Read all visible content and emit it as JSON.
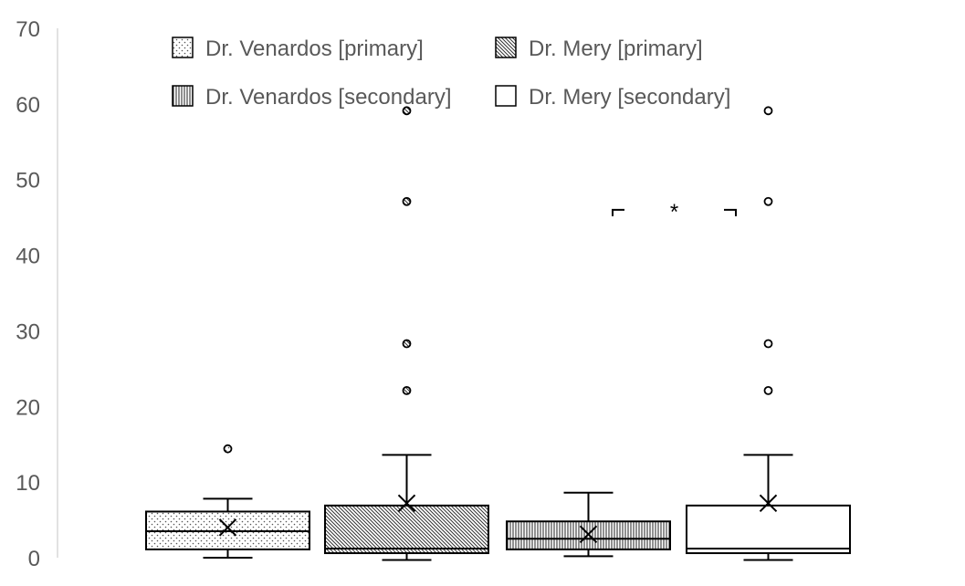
{
  "chart_data": {
    "type": "box",
    "y_ticks": [
      "0",
      "10",
      "20",
      "30",
      "40",
      "50",
      "60",
      "70"
    ],
    "ylim": [
      0,
      70
    ],
    "grid": false,
    "legend_position": "top",
    "legend": [
      {
        "label": "Dr. Venardos [primary]",
        "pattern": "dots"
      },
      {
        "label": "Dr. Mery [primary]",
        "pattern": "diagonal"
      },
      {
        "label": "Dr. Venardos [secondary]",
        "pattern": "vertical"
      },
      {
        "label": "Dr. Mery [secondary]",
        "pattern": "none"
      }
    ],
    "series": [
      {
        "name": "Dr. Venardos [primary]",
        "pattern": "dots",
        "min": 0,
        "q1": 1.1,
        "median": 3.5,
        "q3": 6.1,
        "max": 7.8,
        "mean": 4.0,
        "outliers": [
          14.4
        ]
      },
      {
        "name": "Dr. Mery [primary]",
        "pattern": "diagonal",
        "min": -0.3,
        "q1": 0.6,
        "median": 1.2,
        "q3": 6.9,
        "max": 13.6,
        "mean": 7.2,
        "outliers": [
          22.1,
          28.3,
          47.1,
          59.1
        ]
      },
      {
        "name": "Dr. Venardos [secondary]",
        "pattern": "vertical",
        "min": 0.2,
        "q1": 1.1,
        "median": 2.5,
        "q3": 4.8,
        "max": 8.6,
        "mean": 3.1,
        "outliers": []
      },
      {
        "name": "Dr. Mery [secondary]",
        "pattern": "none",
        "min": -0.3,
        "q1": 0.6,
        "median": 1.2,
        "q3": 6.9,
        "max": 13.6,
        "mean": 7.2,
        "outliers": [
          22.1,
          28.3,
          47.1,
          59.1
        ]
      }
    ],
    "annotation": {
      "text": "*",
      "y": 46,
      "between": [
        2,
        3
      ]
    }
  }
}
